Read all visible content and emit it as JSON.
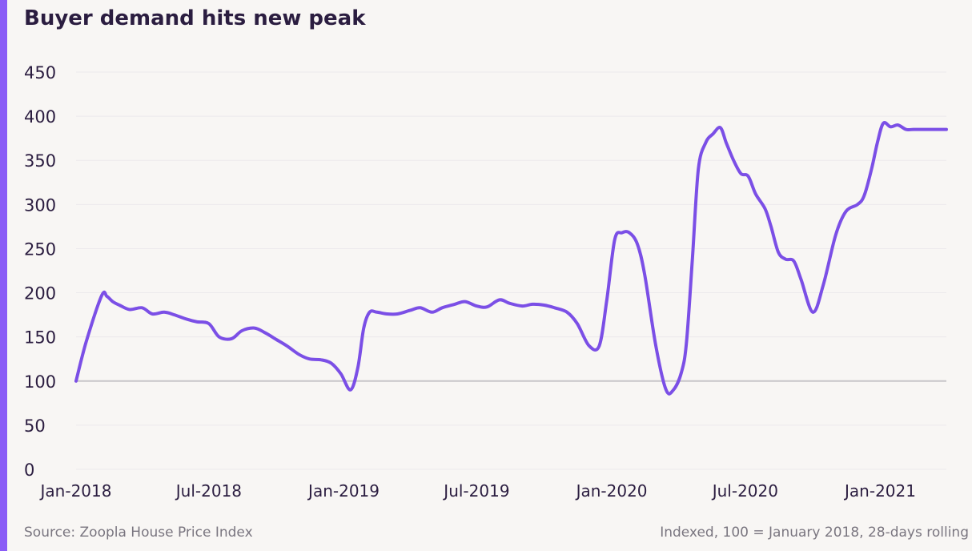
{
  "title": "Buyer demand hits new peak",
  "source": "Source: Zoopla House Price Index",
  "note": "Indexed, 100 = January 2018, 28-days rolling",
  "colors": {
    "line": "#7b4fe6",
    "accent": "#8a5cf6",
    "baseline": "#c8c5c9",
    "grid": "#ece9ec",
    "text": "#2b1d40"
  },
  "chart_data": {
    "type": "line",
    "title": "Buyer demand hits new peak",
    "xlabel": "",
    "ylabel": "",
    "ylim": [
      0,
      450
    ],
    "yticks": [
      0,
      50,
      100,
      150,
      200,
      250,
      300,
      350,
      400,
      450
    ],
    "xtick_labels": [
      "Jan-2018",
      "Jul-2018",
      "Jan-2019",
      "Jul-2019",
      "Jan-2020",
      "Jul-2020",
      "Jan-2021"
    ],
    "xtick_dates": [
      "2018-01-01",
      "2018-07-01",
      "2019-01-01",
      "2019-07-01",
      "2020-01-01",
      "2020-07-01",
      "2021-01-01"
    ],
    "grid": true,
    "reference_line": 100,
    "series": [
      {
        "x": [
          "2018-01-01",
          "2018-01-15",
          "2018-02-05",
          "2018-02-12",
          "2018-02-20",
          "2018-03-01",
          "2018-03-15",
          "2018-04-01",
          "2018-04-15",
          "2018-05-01",
          "2018-05-15",
          "2018-06-01",
          "2018-06-15",
          "2018-07-01",
          "2018-07-15",
          "2018-08-01",
          "2018-08-15",
          "2018-09-01",
          "2018-09-15",
          "2018-10-01",
          "2018-10-15",
          "2018-11-01",
          "2018-11-15",
          "2018-12-01",
          "2018-12-15",
          "2018-12-28",
          "2019-01-10",
          "2019-01-20",
          "2019-01-28",
          "2019-02-05",
          "2019-02-15",
          "2019-03-01",
          "2019-03-15",
          "2019-04-01",
          "2019-04-15",
          "2019-05-01",
          "2019-05-15",
          "2019-06-01",
          "2019-06-15",
          "2019-07-01",
          "2019-07-15",
          "2019-08-01",
          "2019-08-15",
          "2019-09-01",
          "2019-09-15",
          "2019-10-01",
          "2019-10-15",
          "2019-11-01",
          "2019-11-15",
          "2019-12-01",
          "2019-12-15",
          "2019-12-25",
          "2020-01-05",
          "2020-01-15",
          "2020-01-25",
          "2020-02-05",
          "2020-02-15",
          "2020-03-01",
          "2020-03-15",
          "2020-03-25",
          "2020-04-05",
          "2020-04-12",
          "2020-04-20",
          "2020-04-28",
          "2020-05-08",
          "2020-05-18",
          "2020-05-28",
          "2020-06-05",
          "2020-06-15",
          "2020-06-25",
          "2020-07-05",
          "2020-07-15",
          "2020-07-28",
          "2020-08-05",
          "2020-08-15",
          "2020-08-25",
          "2020-09-05",
          "2020-09-15",
          "2020-10-01",
          "2020-10-15",
          "2020-11-01",
          "2020-11-15",
          "2020-12-01",
          "2020-12-10",
          "2020-12-20",
          "2020-12-28",
          "2021-01-05",
          "2021-01-15",
          "2021-01-25",
          "2021-02-05",
          "2021-02-15",
          "2021-02-25",
          "2021-03-05",
          "2021-03-15",
          "2021-03-22",
          "2021-03-28",
          "2021-04-01"
        ],
        "y": [
          100,
          145,
          197,
          196,
          190,
          186,
          181,
          183,
          176,
          178,
          175,
          170,
          167,
          165,
          150,
          148,
          157,
          160,
          155,
          147,
          140,
          130,
          125,
          124,
          120,
          108,
          90,
          115,
          160,
          178,
          178,
          176,
          176,
          180,
          183,
          178,
          183,
          187,
          190,
          185,
          184,
          192,
          188,
          185,
          187,
          186,
          183,
          178,
          165,
          140,
          140,
          190,
          260,
          268,
          268,
          255,
          220,
          140,
          90,
          90,
          110,
          145,
          240,
          340,
          370,
          380,
          387,
          370,
          350,
          335,
          332,
          312,
          295,
          275,
          246,
          238,
          236,
          215,
          178,
          208,
          265,
          292,
          300,
          310,
          340,
          370,
          392,
          388,
          390,
          385,
          385,
          385,
          385,
          385,
          385,
          385,
          385
        ]
      }
    ]
  }
}
